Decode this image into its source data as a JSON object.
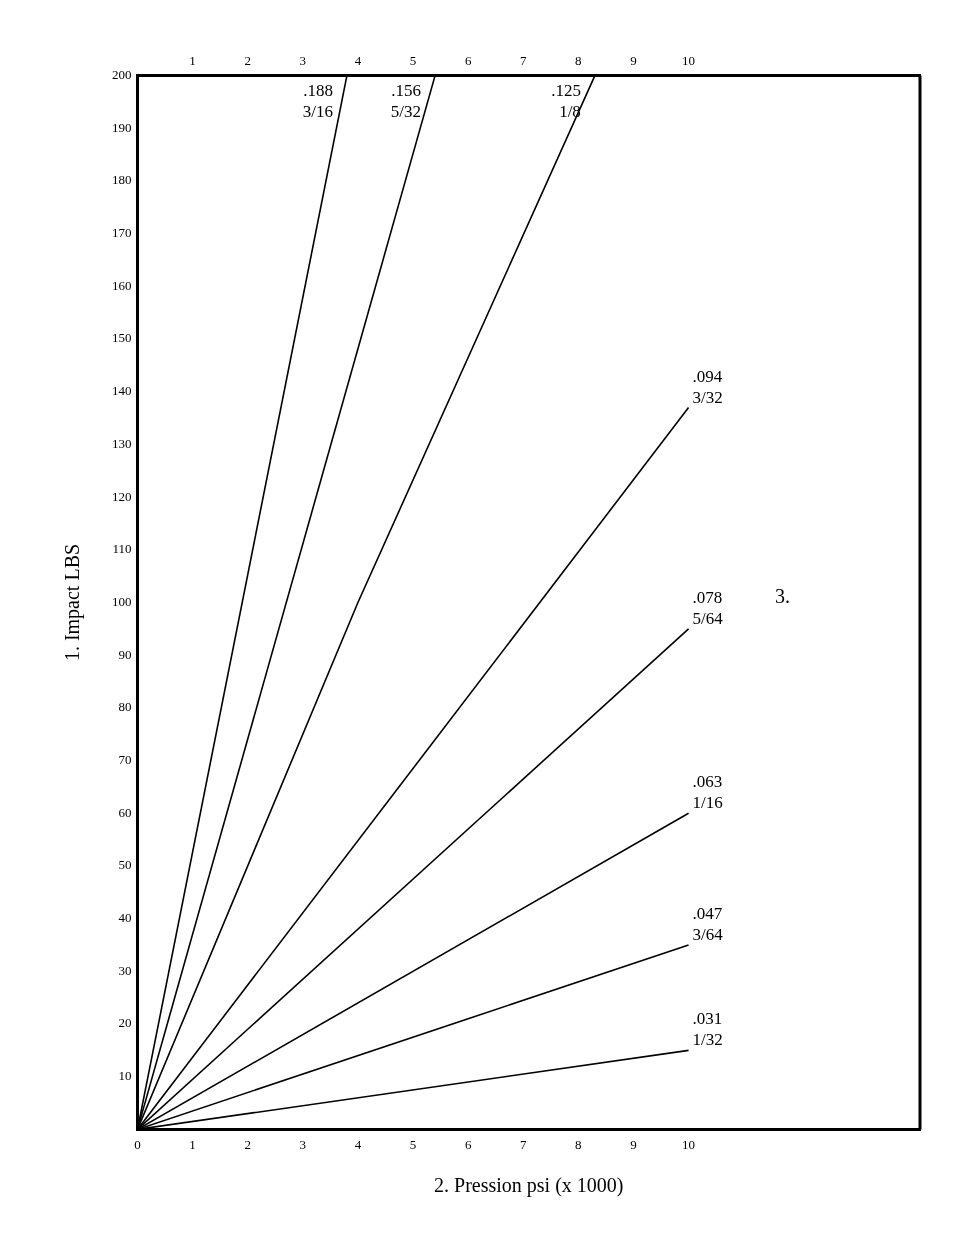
{
  "chart_data": {
    "type": "line",
    "xlabel": "2. Pression psi (x 1000)",
    "ylabel": "1. Impact LBS",
    "annotations": [
      "3."
    ],
    "xlim": [
      0,
      14.2
    ],
    "xticks": [
      0,
      1,
      2,
      3,
      4,
      5,
      6,
      7,
      8,
      9,
      10
    ],
    "x2lim": [
      0,
      14.2
    ],
    "x2ticks": [
      1,
      2,
      3,
      4,
      5,
      6,
      7,
      8,
      9,
      10
    ],
    "ylim": [
      0,
      200
    ],
    "yticks": [
      10,
      20,
      30,
      40,
      50,
      60,
      70,
      80,
      90,
      100,
      110,
      120,
      130,
      140,
      150,
      160,
      170,
      180,
      190,
      200
    ],
    "grid": false,
    "legend": false,
    "marker": "none",
    "line_style": "solid",
    "series": [
      {
        "name": ".188 3/16",
        "color": "#000000",
        "x": [
          0,
          3.8
        ],
        "values": [
          0,
          200
        ]
      },
      {
        "name": ".156 5/32",
        "color": "#000000",
        "x": [
          0,
          5.4
        ],
        "values": [
          0,
          200
        ]
      },
      {
        "name": ".125 1/8",
        "color": "#000000",
        "x": [
          0,
          4.0,
          8.3
        ],
        "values": [
          0,
          100,
          200
        ]
      },
      {
        "name": ".094 3/32",
        "color": "#000000",
        "x": [
          0,
          10
        ],
        "values": [
          0,
          137
        ]
      },
      {
        "name": ".078 5/64",
        "color": "#000000",
        "x": [
          0,
          10
        ],
        "values": [
          0,
          95
        ]
      },
      {
        "name": ".063 1/16",
        "color": "#000000",
        "x": [
          0,
          10
        ],
        "values": [
          0,
          60
        ]
      },
      {
        "name": ".047 3/64",
        "color": "#000000",
        "x": [
          0,
          10
        ],
        "values": [
          0,
          35
        ]
      },
      {
        "name": ".031 1/32",
        "color": "#000000",
        "x": [
          0,
          10
        ],
        "values": [
          0,
          15
        ]
      }
    ]
  }
}
